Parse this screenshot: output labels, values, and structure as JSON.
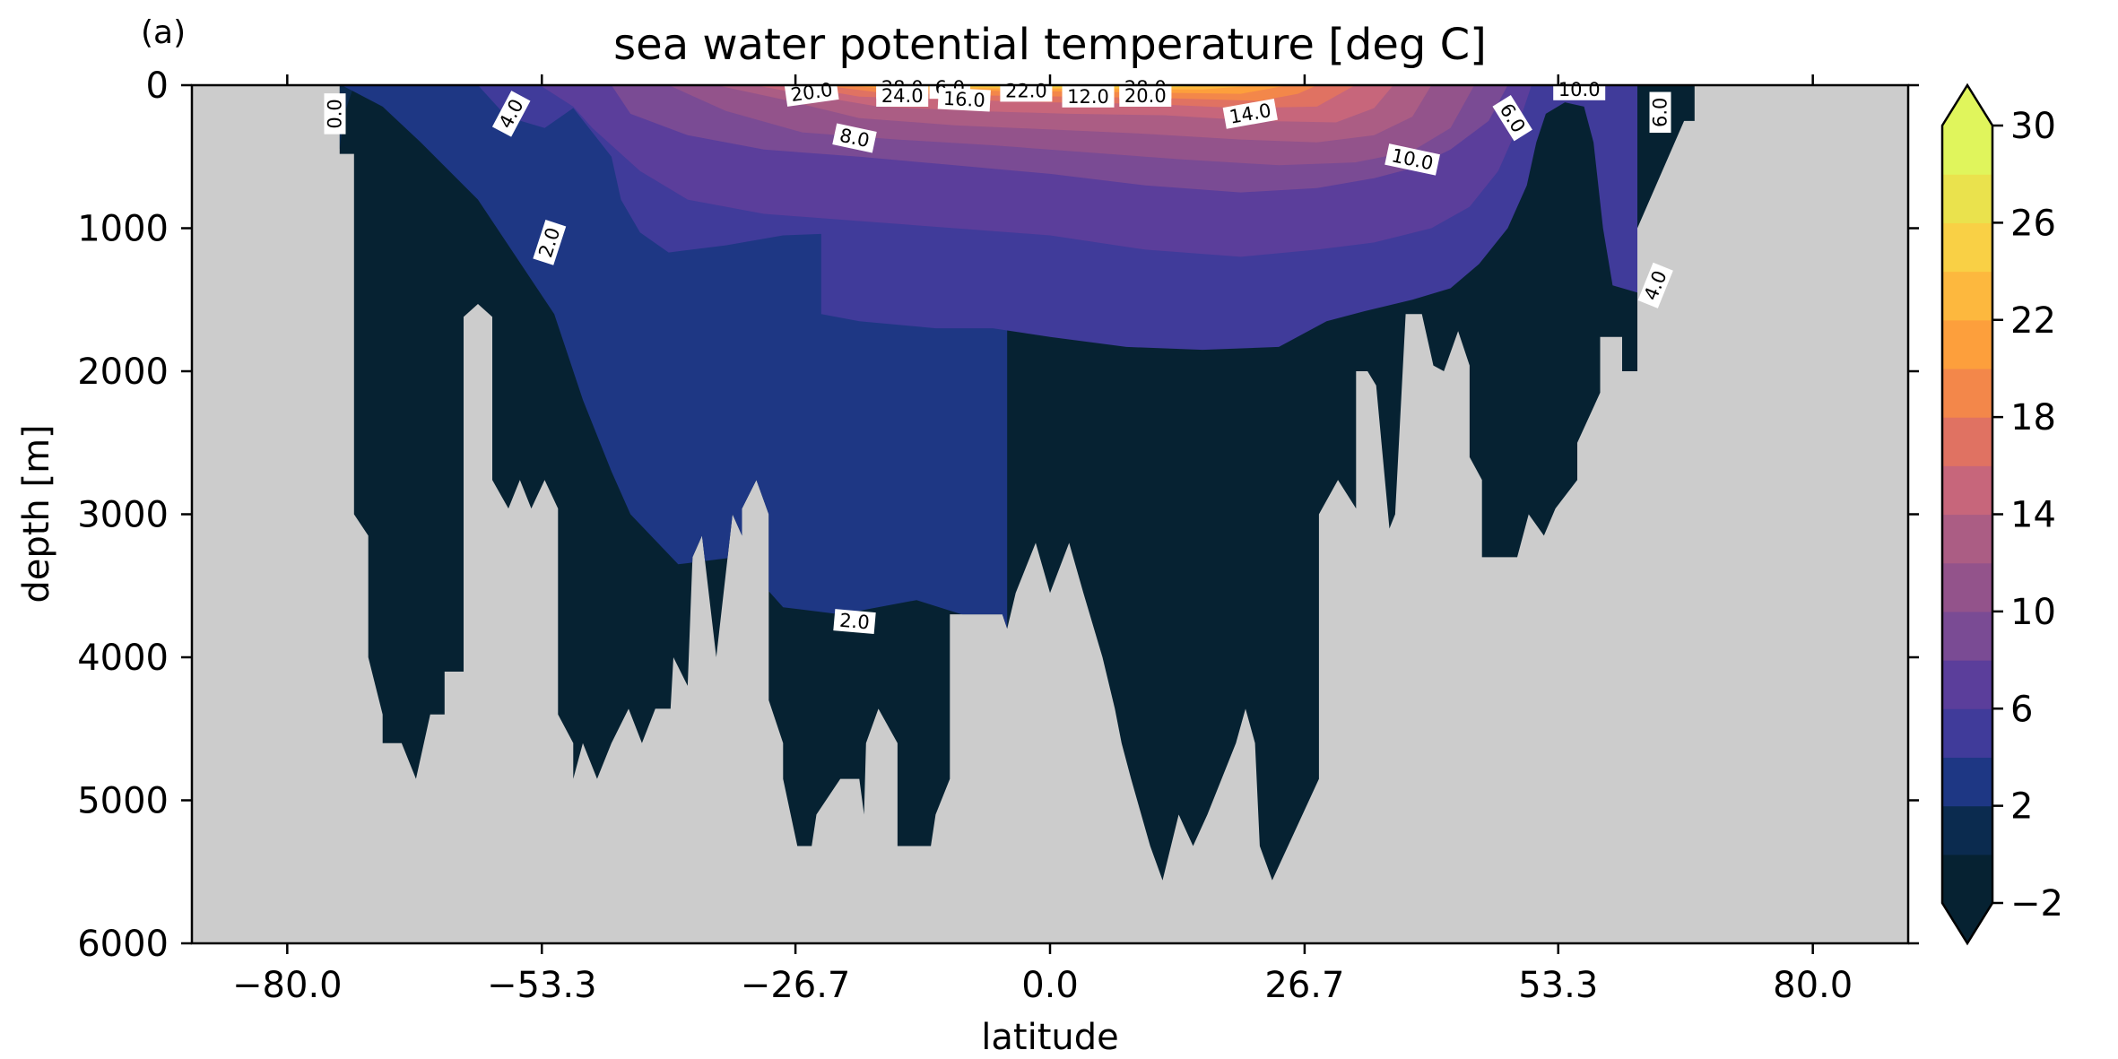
{
  "panel_label": "(a)",
  "colors": {
    "land": "#cccccc",
    "levels": [
      "#062232",
      "#0b2b4f",
      "#1e3784",
      "#403b9a",
      "#5b3e9b",
      "#7a4b94",
      "#93538b",
      "#ab5d84",
      "#c7667b",
      "#e07262",
      "#f3874a",
      "#fd9f3c",
      "#fdb83e",
      "#f9d045",
      "#eae24d",
      "#e0f55c"
    ]
  },
  "chart_data": {
    "type": "contourf",
    "title": "sea water potential temperature [deg C]",
    "xlabel": "latitude",
    "ylabel": "depth [m]",
    "xlim": [
      -90,
      90
    ],
    "ylim": [
      6000,
      0
    ],
    "xticks": [
      -80.0,
      -53.3,
      -26.7,
      0.0,
      26.7,
      53.3,
      80.0
    ],
    "xtick_labels": [
      "−80.0",
      "−53.3",
      "−26.7",
      "0.0",
      "26.7",
      "53.3",
      "80.0"
    ],
    "yticks": [
      0,
      1000,
      2000,
      3000,
      4000,
      5000,
      6000
    ],
    "ytick_labels": [
      "0",
      "1000",
      "2000",
      "3000",
      "4000",
      "5000",
      "6000"
    ],
    "colorbar": {
      "levels": [
        -2,
        0,
        2,
        4,
        6,
        8,
        10,
        12,
        14,
        16,
        18,
        20,
        22,
        24,
        26,
        28,
        30
      ],
      "tick_values": [
        -2,
        2,
        6,
        10,
        14,
        18,
        22,
        26,
        30
      ],
      "tick_labels": [
        "−2",
        "2",
        "6",
        "10",
        "14",
        "18",
        "22",
        "26",
        "30"
      ],
      "extend": "both"
    },
    "bottom_profile": [
      [
        -74.5,
        480
      ],
      [
        -73,
        480
      ],
      [
        -73,
        3000
      ],
      [
        -71.5,
        3150
      ],
      [
        -71.5,
        4000
      ],
      [
        -70,
        4400
      ],
      [
        -70,
        4600
      ],
      [
        -68,
        4600
      ],
      [
        -66.5,
        4850
      ],
      [
        -65,
        4400
      ],
      [
        -63.5,
        4400
      ],
      [
        -63.5,
        4100
      ],
      [
        -61.5,
        4100
      ],
      [
        -61.5,
        1620
      ],
      [
        -60,
        1530
      ],
      [
        -58.5,
        1620
      ],
      [
        -58.5,
        2760
      ],
      [
        -56.8,
        2960
      ],
      [
        -55.6,
        2760
      ],
      [
        -54.4,
        2960
      ],
      [
        -53,
        2760
      ],
      [
        -51.6,
        2960
      ],
      [
        -51.6,
        4400
      ],
      [
        -50,
        4600
      ],
      [
        -50,
        4850
      ],
      [
        -49,
        4600
      ],
      [
        -47.5,
        4850
      ],
      [
        -46,
        4600
      ],
      [
        -44.2,
        4360
      ],
      [
        -42.8,
        4600
      ],
      [
        -41.4,
        4360
      ],
      [
        -39.8,
        4360
      ],
      [
        -39.5,
        4000
      ],
      [
        -38,
        4200
      ],
      [
        -37.5,
        3300
      ],
      [
        -36.5,
        3150
      ],
      [
        -35,
        4000
      ],
      [
        -33.3,
        3000
      ],
      [
        -32.3,
        3150
      ],
      [
        -32.3,
        2960
      ],
      [
        -30.8,
        2760
      ],
      [
        -29.5,
        3000
      ],
      [
        -29.5,
        4300
      ],
      [
        -28,
        4600
      ],
      [
        -28,
        4850
      ],
      [
        -26.5,
        5320
      ],
      [
        -25,
        5320
      ],
      [
        -24.5,
        5100
      ],
      [
        -22,
        4850
      ],
      [
        -20,
        4850
      ],
      [
        -19.5,
        5100
      ],
      [
        -19.3,
        4600
      ],
      [
        -18,
        4360
      ],
      [
        -16,
        4600
      ],
      [
        -16,
        5320
      ],
      [
        -12.5,
        5320
      ],
      [
        -12,
        5100
      ],
      [
        -10.5,
        4850
      ],
      [
        -10.5,
        4600
      ],
      [
        -10.5,
        3700
      ],
      [
        -5,
        3700
      ],
      [
        -4.5,
        3800
      ],
      [
        -3.6,
        3550
      ],
      [
        -1.5,
        3200
      ],
      [
        0,
        3550
      ],
      [
        2,
        3200
      ],
      [
        3.5,
        3550
      ],
      [
        5.5,
        4000
      ],
      [
        6.8,
        4360
      ],
      [
        7.5,
        4600
      ],
      [
        8.5,
        4850
      ],
      [
        10.5,
        5320
      ],
      [
        11.8,
        5560
      ],
      [
        13.5,
        5100
      ],
      [
        15,
        5320
      ],
      [
        16.5,
        5100
      ],
      [
        19.5,
        4600
      ],
      [
        20.5,
        4360
      ],
      [
        21.5,
        4600
      ],
      [
        22,
        5320
      ],
      [
        23.3,
        5560
      ],
      [
        28.2,
        4850
      ],
      [
        28.2,
        3000
      ],
      [
        30.2,
        2760
      ],
      [
        32.1,
        2960
      ],
      [
        32.1,
        2000
      ],
      [
        33.3,
        2000
      ],
      [
        34.2,
        2100
      ],
      [
        35.6,
        3100
      ],
      [
        36.2,
        3000
      ],
      [
        37.3,
        1600
      ],
      [
        39,
        1600
      ],
      [
        40.2,
        1960
      ],
      [
        41.3,
        2000
      ],
      [
        42.8,
        1720
      ],
      [
        44,
        1960
      ],
      [
        44,
        2600
      ],
      [
        45.3,
        2760
      ],
      [
        45.3,
        3300
      ],
      [
        49,
        3300
      ],
      [
        50.2,
        3000
      ],
      [
        51.8,
        3150
      ],
      [
        53,
        2960
      ],
      [
        55.3,
        2760
      ],
      [
        55.3,
        2500
      ],
      [
        57.7,
        2150
      ],
      [
        57.7,
        1760
      ],
      [
        60,
        1760
      ],
      [
        60,
        2000
      ],
      [
        61.6,
        2000
      ],
      [
        61.6,
        1000
      ],
      [
        66.5,
        250
      ],
      [
        67.6,
        250
      ],
      [
        67.6,
        0
      ]
    ],
    "isotherms": [
      {
        "value": 0,
        "points": [
          [
            -74.5,
            450
          ],
          [
            -74,
            200
          ],
          [
            -73,
            0
          ]
        ]
      },
      {
        "value": 2,
        "points": [
          [
            -74.3,
            0
          ],
          [
            -70,
            150
          ],
          [
            -66,
            400
          ],
          [
            -60,
            800
          ],
          [
            -56,
            1200
          ],
          [
            -52,
            1600
          ],
          [
            -49,
            2200
          ],
          [
            -46,
            2700
          ],
          [
            -44,
            3000
          ],
          [
            -39,
            3350
          ],
          [
            -33,
            3300
          ],
          [
            -30,
            3500
          ],
          [
            -28,
            3650
          ],
          [
            -22,
            3700
          ],
          [
            -14,
            3600
          ],
          [
            -4.5,
            3800
          ]
        ]
      },
      {
        "value": 4,
        "points": [
          [
            -60,
            0
          ],
          [
            -57,
            220
          ],
          [
            -53,
            300
          ],
          [
            -50,
            160
          ],
          [
            -46,
            500
          ],
          [
            -45,
            800
          ],
          [
            -43,
            1030
          ],
          [
            -40,
            1170
          ],
          [
            -34,
            1120
          ],
          [
            -28,
            1050
          ],
          [
            -24,
            1040
          ],
          [
            -24,
            1600
          ],
          [
            -20,
            1650
          ],
          [
            -12,
            1700
          ],
          [
            -6,
            1700
          ],
          [
            0,
            1760
          ],
          [
            8,
            1830
          ],
          [
            16,
            1850
          ],
          [
            24,
            1830
          ],
          [
            29,
            1650
          ],
          [
            33,
            1580
          ],
          [
            38,
            1500
          ],
          [
            42,
            1420
          ],
          [
            45,
            1250
          ],
          [
            48,
            1000
          ],
          [
            50,
            700
          ],
          [
            51,
            400
          ],
          [
            52,
            200
          ],
          [
            54,
            120
          ],
          [
            56,
            150
          ],
          [
            57,
            400
          ],
          [
            58,
            1000
          ],
          [
            59,
            1400
          ],
          [
            61.6,
            1450
          ]
        ]
      },
      {
        "value": 6,
        "points": [
          [
            -53.5,
            0
          ],
          [
            -50,
            150
          ],
          [
            -48,
            300
          ],
          [
            -43,
            600
          ],
          [
            -38,
            800
          ],
          [
            -30,
            900
          ],
          [
            -20,
            950
          ],
          [
            -10,
            1000
          ],
          [
            0,
            1050
          ],
          [
            10,
            1150
          ],
          [
            20,
            1200
          ],
          [
            28,
            1150
          ],
          [
            34,
            1100
          ],
          [
            40,
            1000
          ],
          [
            44,
            850
          ],
          [
            47,
            600
          ],
          [
            49,
            300
          ],
          [
            50.5,
            0
          ]
        ]
      },
      {
        "value": 8,
        "points": [
          [
            -46,
            0
          ],
          [
            -44,
            200
          ],
          [
            -38,
            350
          ],
          [
            -30,
            450
          ],
          [
            -20,
            500
          ],
          [
            -10,
            560
          ],
          [
            0,
            620
          ],
          [
            10,
            700
          ],
          [
            20,
            750
          ],
          [
            28,
            720
          ],
          [
            34,
            650
          ],
          [
            38,
            580
          ],
          [
            42,
            450
          ],
          [
            46,
            250
          ],
          [
            48,
            0
          ]
        ]
      },
      {
        "value": 10,
        "points": [
          [
            -40,
            0
          ],
          [
            -34,
            180
          ],
          [
            -26,
            330
          ],
          [
            -16,
            380
          ],
          [
            -6,
            420
          ],
          [
            4,
            470
          ],
          [
            14,
            520
          ],
          [
            24,
            560
          ],
          [
            32,
            540
          ],
          [
            38,
            460
          ],
          [
            42,
            300
          ],
          [
            44.5,
            0
          ]
        ]
      },
      {
        "value": 12,
        "points": [
          [
            -35,
            0
          ],
          [
            -28,
            100
          ],
          [
            -20,
            230
          ],
          [
            -10,
            280
          ],
          [
            0,
            310
          ],
          [
            10,
            340
          ],
          [
            20,
            380
          ],
          [
            28,
            400
          ],
          [
            34,
            350
          ],
          [
            38,
            220
          ],
          [
            40,
            0
          ]
        ]
      },
      {
        "value": 14,
        "points": [
          [
            -31,
            0
          ],
          [
            -26,
            60
          ],
          [
            -18,
            150
          ],
          [
            -8,
            180
          ],
          [
            2,
            200
          ],
          [
            12,
            210
          ],
          [
            22,
            250
          ],
          [
            30,
            260
          ],
          [
            34,
            160
          ],
          [
            36,
            0
          ]
        ]
      },
      {
        "value": 16,
        "points": [
          [
            -27,
            0
          ],
          [
            -20,
            80
          ],
          [
            -10,
            100
          ],
          [
            0,
            120
          ],
          [
            10,
            130
          ],
          [
            20,
            160
          ],
          [
            28,
            150
          ],
          [
            32,
            0
          ]
        ]
      },
      {
        "value": 18,
        "points": [
          [
            -24,
            0
          ],
          [
            -18,
            50
          ],
          [
            -8,
            70
          ],
          [
            2,
            80
          ],
          [
            12,
            90
          ],
          [
            22,
            110
          ],
          [
            26,
            60
          ],
          [
            28,
            0
          ]
        ]
      },
      {
        "value": 20,
        "points": [
          [
            -22,
            0
          ],
          [
            -16,
            30
          ],
          [
            -6,
            40
          ],
          [
            4,
            45
          ],
          [
            14,
            55
          ],
          [
            20,
            60
          ],
          [
            25,
            0
          ]
        ]
      },
      {
        "value": 22,
        "points": [
          [
            -19,
            0
          ],
          [
            -12,
            20
          ],
          [
            -2,
            25
          ],
          [
            8,
            28
          ],
          [
            16,
            30
          ],
          [
            22,
            0
          ]
        ]
      },
      {
        "value": 24,
        "points": [
          [
            -16,
            0
          ],
          [
            -8,
            14
          ],
          [
            2,
            16
          ],
          [
            12,
            16
          ],
          [
            18,
            0
          ]
        ]
      },
      {
        "value": 26,
        "points": [
          [
            -13,
            0
          ],
          [
            -5,
            8
          ],
          [
            5,
            9
          ],
          [
            14,
            0
          ]
        ]
      }
    ],
    "contour_labels": [
      {
        "text": "0.0",
        "x": -75,
        "y": 200,
        "angle": 90
      },
      {
        "text": "4.0",
        "x": -56.5,
        "y": 200,
        "angle": 62
      },
      {
        "text": "2.0",
        "x": -52.5,
        "y": 1100,
        "angle": 72
      },
      {
        "text": "20.0",
        "x": -25,
        "y": 50,
        "angle": 8
      },
      {
        "text": "28.0",
        "x": -15.5,
        "y": 20,
        "angle": 0
      },
      {
        "text": "24.0",
        "x": -15.5,
        "y": 75,
        "angle": 0
      },
      {
        "text": "6.0",
        "x": -10.5,
        "y": 20,
        "angle": 0
      },
      {
        "text": "16.0",
        "x": -9,
        "y": 100,
        "angle": -3
      },
      {
        "text": "22.0",
        "x": -2.5,
        "y": 40,
        "angle": 0
      },
      {
        "text": "12.0",
        "x": 4,
        "y": 80,
        "angle": 0
      },
      {
        "text": "28.0",
        "x": 10,
        "y": 20,
        "angle": 0
      },
      {
        "text": "20.0",
        "x": 10,
        "y": 75,
        "angle": 0
      },
      {
        "text": "8.0",
        "x": -20.5,
        "y": 370,
        "angle": -12
      },
      {
        "text": "14.0",
        "x": 21,
        "y": 200,
        "angle": 10
      },
      {
        "text": "10.0",
        "x": 38,
        "y": 520,
        "angle": -12
      },
      {
        "text": "6.0",
        "x": 48.5,
        "y": 230,
        "angle": -58
      },
      {
        "text": "10.0",
        "x": 55.5,
        "y": 30,
        "angle": 0
      },
      {
        "text": "6.0",
        "x": 64,
        "y": 190,
        "angle": 90
      },
      {
        "text": "4.0",
        "x": 63.5,
        "y": 1400,
        "angle": 68
      },
      {
        "text": "2.0",
        "x": -20.5,
        "y": 3750,
        "angle": -5
      }
    ]
  }
}
